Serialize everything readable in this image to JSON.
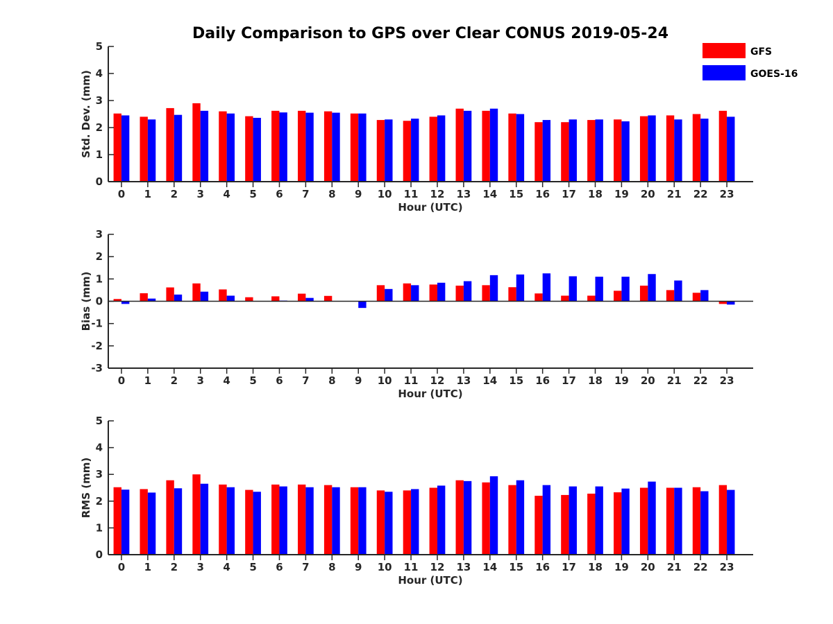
{
  "title": "Daily Comparison to GPS over Clear CONUS 2019-05-24",
  "colors": {
    "gfs": "#ff0000",
    "goes": "#0000ff"
  },
  "legend": [
    {
      "name": "GFS",
      "color": "#ff0000"
    },
    {
      "name": "GOES-16",
      "color": "#0000ff"
    }
  ],
  "chart_data": [
    {
      "type": "bar",
      "name": "stddev",
      "xlabel": "Hour (UTC)",
      "ylabel": "Std. Dev. (mm)",
      "ylim": [
        0,
        5
      ],
      "yticks": [
        0,
        1,
        2,
        3,
        4,
        5
      ],
      "categories": [
        "0",
        "1",
        "2",
        "3",
        "4",
        "5",
        "6",
        "7",
        "8",
        "9",
        "10",
        "11",
        "12",
        "13",
        "14",
        "15",
        "16",
        "17",
        "18",
        "19",
        "20",
        "21",
        "22",
        "23"
      ],
      "series": [
        {
          "name": "GFS",
          "values": [
            2.52,
            2.4,
            2.72,
            2.9,
            2.6,
            2.42,
            2.62,
            2.62,
            2.6,
            2.52,
            2.28,
            2.25,
            2.4,
            2.7,
            2.62,
            2.52,
            2.2,
            2.2,
            2.28,
            2.3,
            2.42,
            2.45,
            2.5,
            2.62
          ]
        },
        {
          "name": "GOES-16",
          "values": [
            2.45,
            2.3,
            2.47,
            2.62,
            2.52,
            2.36,
            2.56,
            2.55,
            2.55,
            2.52,
            2.3,
            2.33,
            2.45,
            2.62,
            2.7,
            2.5,
            2.28,
            2.3,
            2.3,
            2.23,
            2.45,
            2.3,
            2.33,
            2.4
          ]
        }
      ]
    },
    {
      "type": "bar",
      "name": "bias",
      "xlabel": "Hour (UTC)",
      "ylabel": "Bias (mm)",
      "ylim": [
        -3,
        3
      ],
      "yticks": [
        -3,
        -2,
        -1,
        0,
        1,
        2,
        3
      ],
      "categories": [
        "0",
        "1",
        "2",
        "3",
        "4",
        "5",
        "6",
        "7",
        "8",
        "9",
        "10",
        "11",
        "12",
        "13",
        "14",
        "15",
        "16",
        "17",
        "18",
        "19",
        "20",
        "21",
        "22",
        "23"
      ],
      "series": [
        {
          "name": "GFS",
          "values": [
            0.1,
            0.36,
            0.62,
            0.8,
            0.53,
            0.18,
            0.22,
            0.34,
            0.24,
            0.0,
            0.72,
            0.8,
            0.75,
            0.7,
            0.72,
            0.63,
            0.35,
            0.25,
            0.25,
            0.47,
            0.7,
            0.5,
            0.38,
            -0.12
          ]
        },
        {
          "name": "GOES-16",
          "values": [
            -0.12,
            0.12,
            0.3,
            0.43,
            0.25,
            0.0,
            0.03,
            0.15,
            0.0,
            -0.3,
            0.55,
            0.72,
            0.83,
            0.9,
            1.17,
            1.2,
            1.25,
            1.12,
            1.1,
            1.1,
            1.22,
            0.93,
            0.5,
            -0.15
          ]
        }
      ]
    },
    {
      "type": "bar",
      "name": "rms",
      "xlabel": "Hour (UTC)",
      "ylabel": "RMS (mm)",
      "ylim": [
        0,
        5
      ],
      "yticks": [
        0,
        1,
        2,
        3,
        4,
        5
      ],
      "categories": [
        "0",
        "1",
        "2",
        "3",
        "4",
        "5",
        "6",
        "7",
        "8",
        "9",
        "10",
        "11",
        "12",
        "13",
        "14",
        "15",
        "16",
        "17",
        "18",
        "19",
        "20",
        "21",
        "22",
        "23"
      ],
      "series": [
        {
          "name": "GFS",
          "values": [
            2.52,
            2.45,
            2.78,
            3.0,
            2.62,
            2.42,
            2.62,
            2.62,
            2.6,
            2.52,
            2.4,
            2.4,
            2.5,
            2.78,
            2.7,
            2.6,
            2.2,
            2.23,
            2.28,
            2.33,
            2.5,
            2.5,
            2.52,
            2.6
          ]
        },
        {
          "name": "GOES-16",
          "values": [
            2.43,
            2.32,
            2.48,
            2.65,
            2.52,
            2.35,
            2.55,
            2.52,
            2.52,
            2.52,
            2.35,
            2.45,
            2.58,
            2.75,
            2.93,
            2.78,
            2.6,
            2.55,
            2.55,
            2.47,
            2.73,
            2.5,
            2.37,
            2.42
          ]
        }
      ]
    }
  ]
}
